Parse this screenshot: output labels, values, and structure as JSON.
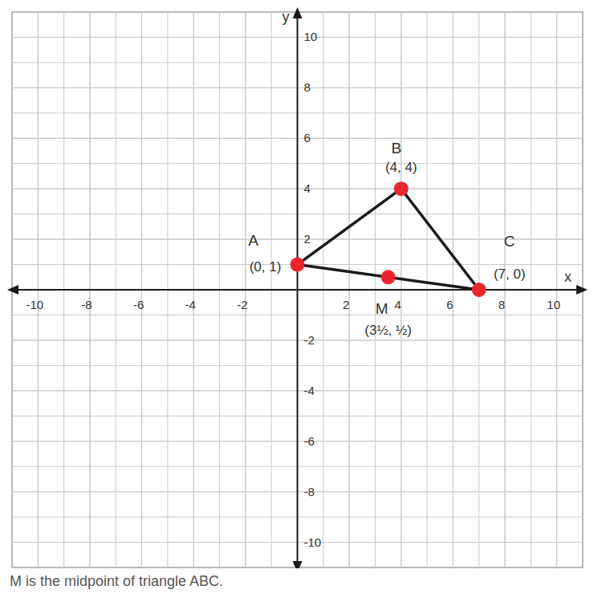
{
  "chart_data": {
    "type": "scatter",
    "x_label": "x",
    "y_label": "y",
    "xlim": [
      -11,
      11
    ],
    "ylim": [
      -11,
      11
    ],
    "xticks": [
      -10,
      -8,
      -6,
      -4,
      -2,
      2,
      4,
      6,
      8,
      10
    ],
    "yticks": [
      -10,
      -8,
      -6,
      -4,
      -2,
      2,
      4,
      6,
      8,
      10
    ],
    "grid": true,
    "series": [
      {
        "type": "line",
        "color": "#1a1a1a",
        "edges": [
          [
            "A",
            "B"
          ],
          [
            "B",
            "C"
          ],
          [
            "C",
            "A"
          ]
        ]
      },
      {
        "type": "scatter",
        "color": "#e8262d",
        "marker": "circle",
        "points": [
          {
            "label": "A",
            "coords": "(0, 1)",
            "x": 0,
            "y": 1
          },
          {
            "label": "B",
            "coords": "(4, 4)",
            "x": 4,
            "y": 4
          },
          {
            "label": "C",
            "coords": "(7, 0)",
            "x": 7,
            "y": 0
          },
          {
            "label": "M",
            "coords": "(3½, ½)",
            "x": 3.5,
            "y": 0.5
          }
        ]
      }
    ],
    "annotation": "M is the midpoint of triangle ABC."
  }
}
